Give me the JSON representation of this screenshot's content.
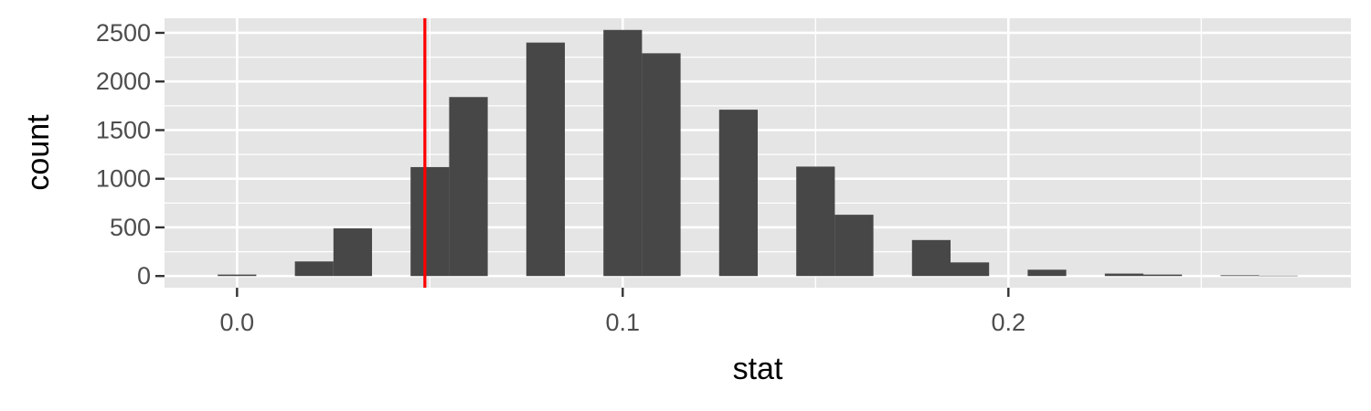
{
  "chart_data": {
    "type": "bar",
    "subtype": "histogram",
    "xlabel": "stat",
    "ylabel": "count",
    "xlim": [
      -0.0188,
      0.2888
    ],
    "ylim": [
      -120,
      2650
    ],
    "x_ticks": [
      {
        "value": 0.0,
        "label": "0.0"
      },
      {
        "value": 0.1,
        "label": "0.1"
      },
      {
        "value": 0.2,
        "label": "0.2"
      }
    ],
    "y_ticks": [
      {
        "value": 0,
        "label": "0"
      },
      {
        "value": 500,
        "label": "500"
      },
      {
        "value": 1000,
        "label": "1000"
      },
      {
        "value": 1500,
        "label": "1500"
      },
      {
        "value": 2000,
        "label": "2000"
      },
      {
        "value": 2500,
        "label": "2500"
      }
    ],
    "x_minor_breaks": [
      0.05,
      0.15,
      0.25
    ],
    "y_minor_breaks": [
      250,
      750,
      1250,
      1750,
      2250
    ],
    "bin_width": 0.01,
    "bins": [
      {
        "center": 0.0,
        "count": 15
      },
      {
        "center": 0.02,
        "count": 150
      },
      {
        "center": 0.03,
        "count": 490
      },
      {
        "center": 0.05,
        "count": 1120
      },
      {
        "center": 0.06,
        "count": 1840
      },
      {
        "center": 0.08,
        "count": 2400
      },
      {
        "center": 0.1,
        "count": 2530
      },
      {
        "center": 0.11,
        "count": 2290
      },
      {
        "center": 0.13,
        "count": 1710
      },
      {
        "center": 0.15,
        "count": 1125
      },
      {
        "center": 0.16,
        "count": 630
      },
      {
        "center": 0.18,
        "count": 370
      },
      {
        "center": 0.19,
        "count": 140
      },
      {
        "center": 0.21,
        "count": 65
      },
      {
        "center": 0.23,
        "count": 25
      },
      {
        "center": 0.24,
        "count": 15
      },
      {
        "center": 0.26,
        "count": 8
      },
      {
        "center": 0.27,
        "count": 4
      }
    ],
    "vline": {
      "x": 0.0487,
      "color": "#ff0000"
    },
    "grid": true,
    "colors": {
      "panel": "#e5e5e5",
      "grid": "#ffffff",
      "bar": "#474747",
      "tick_text": "#4d4d4d",
      "tick_mark": "#333333"
    }
  }
}
